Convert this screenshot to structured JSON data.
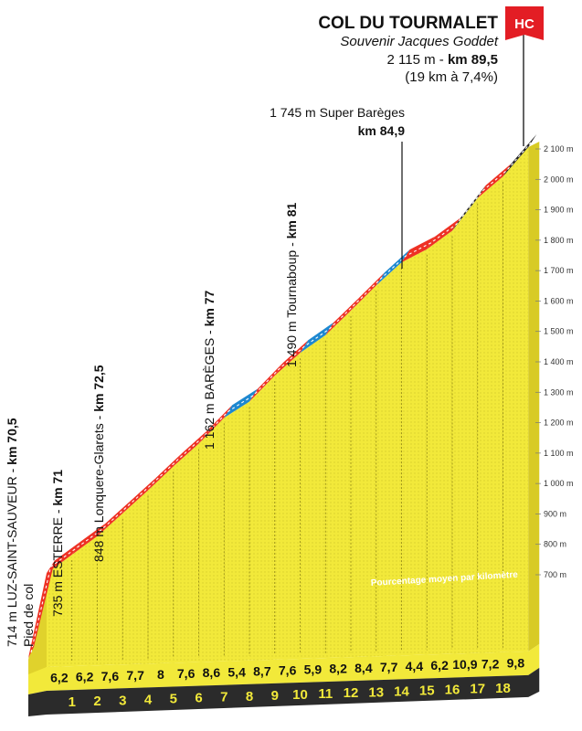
{
  "summit": {
    "name": "COL DU TOURMALET",
    "subtitle": "Souvenir Jacques Goddet",
    "altitude": "2 115 m - ",
    "km": "km 89,5",
    "detail": "(19 km à 7,4%)",
    "category": "HC"
  },
  "legend_text": "Pourcentage moyen par kilomètre",
  "waypoints": [
    {
      "id": "luz",
      "label": "714 m LUZ-SAINT-SAUVEUR - ",
      "km": "km 70,5",
      "extra": "Pied de col"
    },
    {
      "id": "esterre",
      "label": "735 m ESTERRE - ",
      "km": "km 71"
    },
    {
      "id": "longuere",
      "label": "848 m Lonquere-Glarets - ",
      "km": "km 72,5"
    },
    {
      "id": "bareges",
      "label": "1 162 m BARÈGES - ",
      "km": "km 77"
    },
    {
      "id": "tournaboup",
      "label": "1 490 m Tournaboup - ",
      "km": "km 81"
    },
    {
      "id": "superbareges",
      "label": "1 745 m Super Barèges",
      "km": "km 84,9"
    }
  ],
  "chart_data": {
    "type": "area",
    "title": "COL DU TOURMALET",
    "x_unit": "km",
    "y_unit": "m",
    "ylim": [
      650,
      2130
    ],
    "y_ticks": [
      "700 m",
      "800 m",
      "900 m",
      "1 000 m",
      "1 100 m",
      "1 200 m",
      "1 300 m",
      "1 400 m",
      "1 500 m",
      "1 600 m",
      "1 700 m",
      "1 800 m",
      "1 900 m",
      "2 000 m",
      "2 100 m"
    ],
    "y_tick_values": [
      700,
      800,
      900,
      1000,
      1100,
      1200,
      1300,
      1400,
      1500,
      1600,
      1700,
      1800,
      1900,
      2000,
      2100
    ],
    "km_labels": [
      "1",
      "2",
      "3",
      "4",
      "5",
      "6",
      "7",
      "8",
      "9",
      "10",
      "11",
      "12",
      "13",
      "14",
      "15",
      "16",
      "17",
      "18"
    ],
    "gradients": [
      6.2,
      6.2,
      7.6,
      7.7,
      8,
      7.6,
      8.6,
      5.4,
      8.7,
      7.6,
      5.9,
      8.2,
      8.4,
      7.7,
      4.4,
      6.2,
      10.9,
      7.2,
      9.8
    ],
    "gradient_labels": [
      "6,2",
      "6,2",
      "7,6",
      "7,7",
      "8",
      "7,6",
      "8,6",
      "5,4",
      "8,7",
      "7,6",
      "5,9",
      "8,2",
      "8,4",
      "7,7",
      "4,4",
      "6,2",
      "10,9",
      "7,2",
      "9,8"
    ],
    "gradient_colors": [
      "red",
      "red",
      "red",
      "red",
      "red",
      "red",
      "red",
      "blue",
      "red",
      "red",
      "blue",
      "red",
      "red",
      "blue",
      "red",
      "red",
      "black",
      "red",
      "black"
    ],
    "colors": {
      "red": "#ee3124",
      "blue": "#1e88d0",
      "black": "#222222",
      "fill": "#f2e93a",
      "base": "#2b2b2b",
      "hc": "#e31d24"
    }
  }
}
